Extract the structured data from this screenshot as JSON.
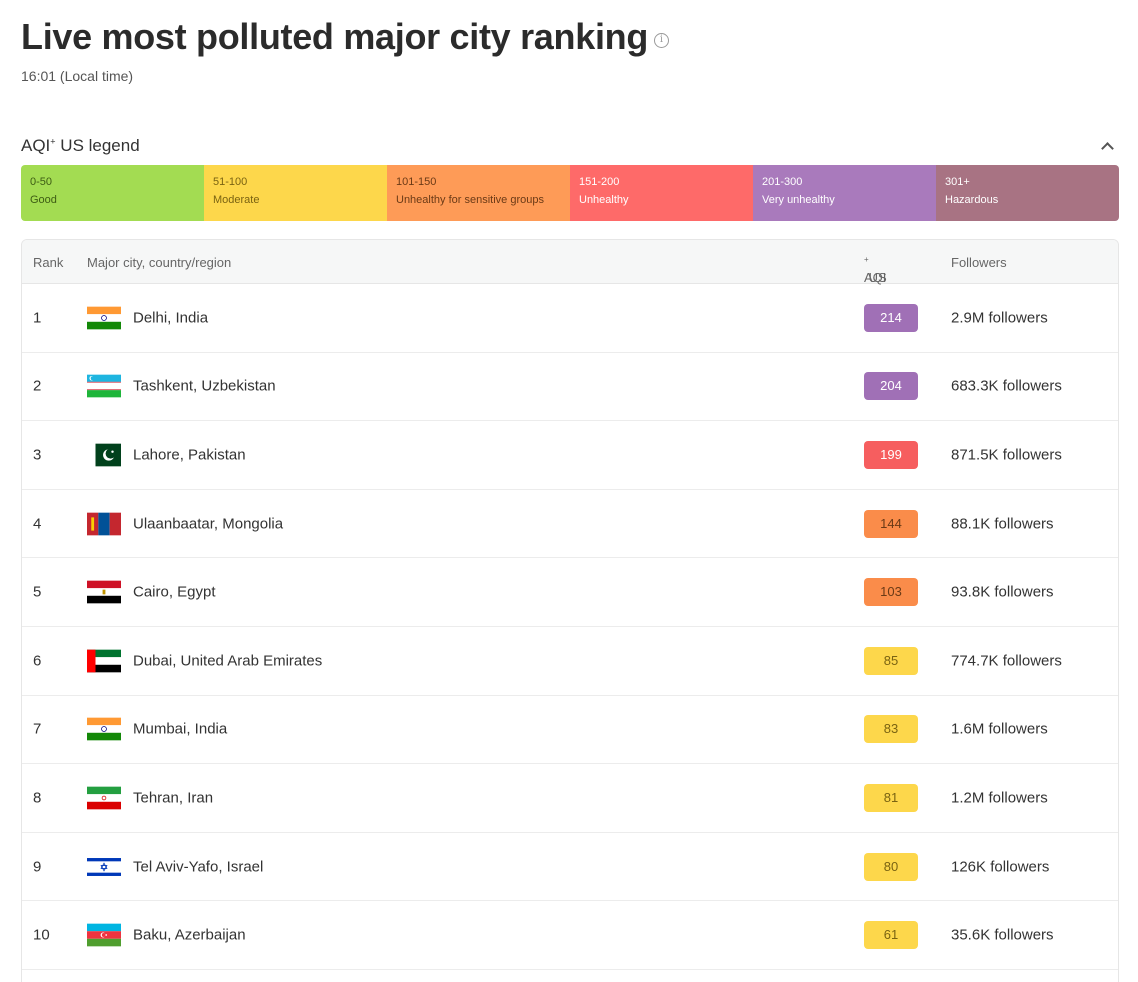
{
  "header": {
    "title": "Live most polluted major city ranking",
    "local_time": "16:01 (Local time)"
  },
  "legend": {
    "title_main": "AQI",
    "title_sup": "+",
    "title_rest": " US legend",
    "segments": [
      {
        "range": "0-50",
        "label": "Good",
        "color": "#a3dc52",
        "text_color": "#3d5c14"
      },
      {
        "range": "51-100",
        "label": "Moderate",
        "color": "#fdd74b",
        "text_color": "#7a6312"
      },
      {
        "range": "101-150",
        "label": "Unhealthy for sensitive groups",
        "color": "#fe9b57",
        "text_color": "#6b3a16"
      },
      {
        "range": "151-200",
        "label": "Unhealthy",
        "color": "#fe6a69",
        "text_color": "#ffffff"
      },
      {
        "range": "201-300",
        "label": "Very unhealthy",
        "color": "#a97abc",
        "text_color": "#ffffff"
      },
      {
        "range": "301+",
        "label": "Hazardous",
        "color": "#a87383",
        "text_color": "#ffffff"
      }
    ]
  },
  "table": {
    "headers": {
      "rank": "Rank",
      "city": "Major city, country/region",
      "aqi_main": "AQI",
      "aqi_sup": "+",
      "aqi_rest": " US",
      "followers": "Followers"
    },
    "rows": [
      {
        "rank": "1",
        "city": "Delhi, India",
        "flag": "india-flag",
        "aqi": "214",
        "level": "purple",
        "followers": "2.9M followers"
      },
      {
        "rank": "2",
        "city": "Tashkent, Uzbekistan",
        "flag": "uzbekistan-flag",
        "aqi": "204",
        "level": "purple",
        "followers": "683.3K followers"
      },
      {
        "rank": "3",
        "city": "Lahore, Pakistan",
        "flag": "pakistan-flag",
        "aqi": "199",
        "level": "red",
        "followers": "871.5K followers"
      },
      {
        "rank": "4",
        "city": "Ulaanbaatar, Mongolia",
        "flag": "mongolia-flag",
        "aqi": "144",
        "level": "orange",
        "followers": "88.1K followers"
      },
      {
        "rank": "5",
        "city": "Cairo, Egypt",
        "flag": "egypt-flag",
        "aqi": "103",
        "level": "orange",
        "followers": "93.8K followers"
      },
      {
        "rank": "6",
        "city": "Dubai, United Arab Emirates",
        "flag": "uae-flag",
        "aqi": "85",
        "level": "yellow",
        "followers": "774.7K followers"
      },
      {
        "rank": "7",
        "city": "Mumbai, India",
        "flag": "india-flag",
        "aqi": "83",
        "level": "yellow",
        "followers": "1.6M followers"
      },
      {
        "rank": "8",
        "city": "Tehran, Iran",
        "flag": "iran-flag",
        "aqi": "81",
        "level": "yellow",
        "followers": "1.2M followers"
      },
      {
        "rank": "9",
        "city": "Tel Aviv-Yafo, Israel",
        "flag": "israel-flag",
        "aqi": "80",
        "level": "yellow",
        "followers": "126K followers"
      },
      {
        "rank": "10",
        "city": "Baku, Azerbaijan",
        "flag": "azerbaijan-flag",
        "aqi": "61",
        "level": "yellow",
        "followers": "35.6K followers"
      }
    ]
  }
}
